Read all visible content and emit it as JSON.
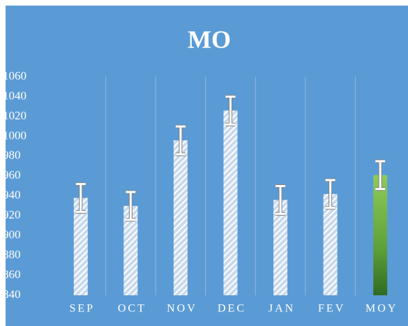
{
  "chart_data": {
    "type": "bar",
    "title": "MO",
    "categories": [
      "SEP",
      "OCT",
      "NOV",
      "DEC",
      "JAN",
      "FEV",
      "MOY"
    ],
    "values": [
      938,
      930,
      996,
      1026,
      936,
      942,
      961
    ],
    "errors": [
      14,
      14,
      14,
      14,
      14,
      14,
      14
    ],
    "ylim": [
      840,
      1060
    ],
    "yticks": [
      840,
      860,
      880,
      900,
      920,
      940,
      960,
      980,
      1000,
      1020,
      1040,
      1060
    ],
    "grid": true
  }
}
